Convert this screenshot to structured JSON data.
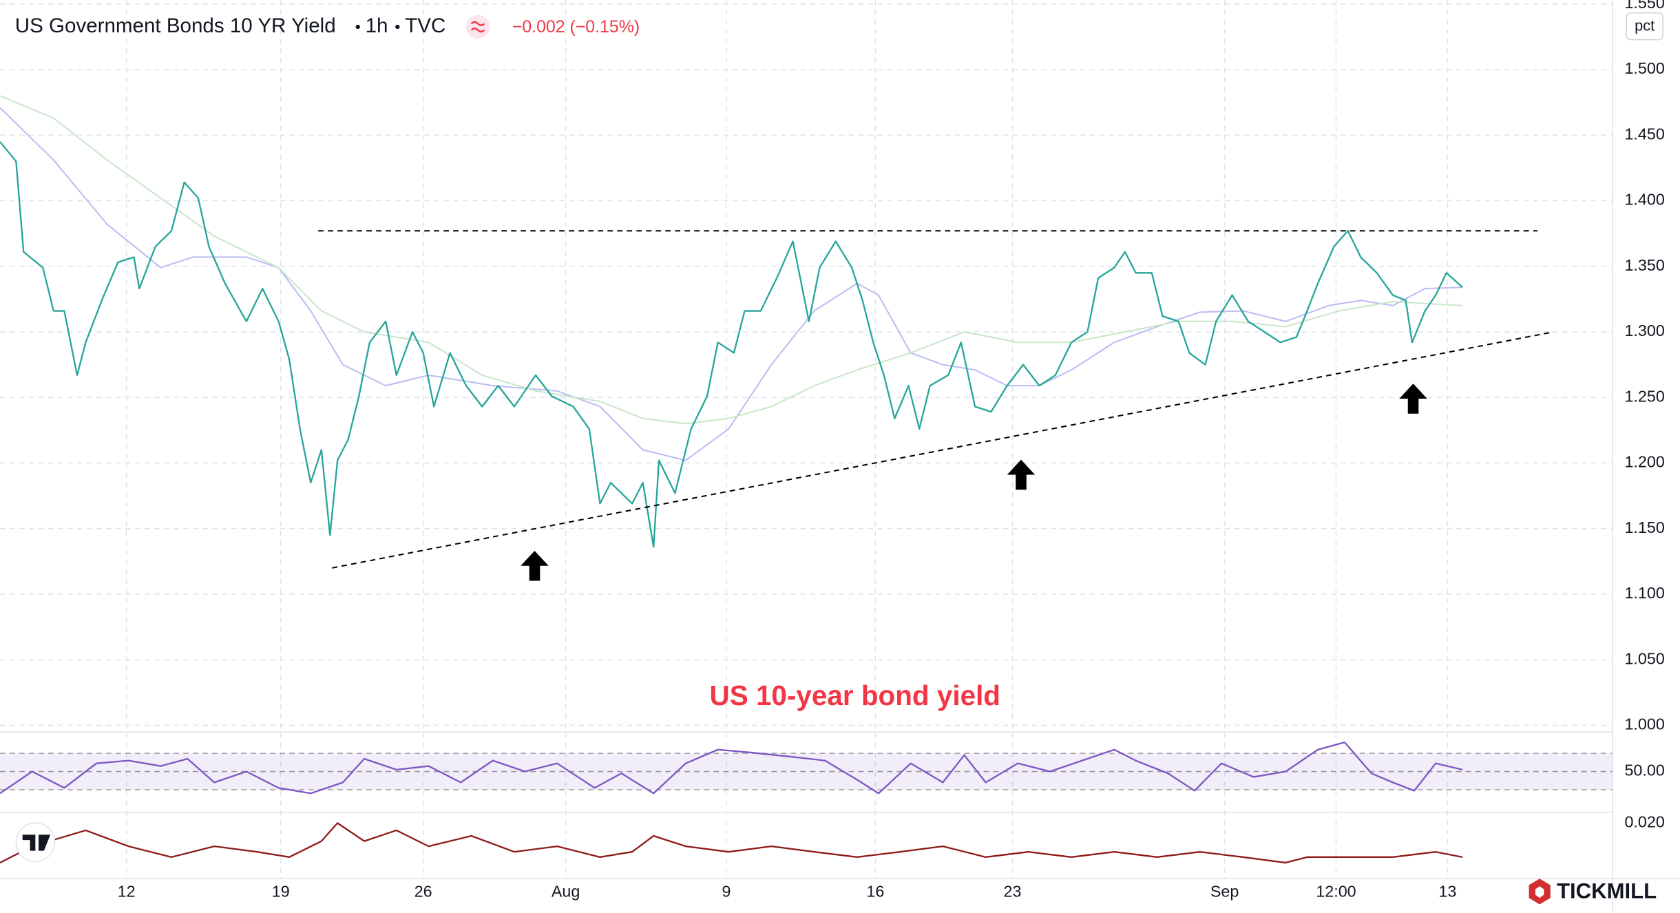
{
  "header": {
    "symbol": "US Government Bonds 10 YR Yield",
    "interval": "1h",
    "source": "TVC",
    "change": "−0.002 (−0.15%)",
    "unit": "pct"
  },
  "brand": "TICKMILL",
  "chart_data": [
    {
      "type": "line",
      "annotation": "US 10-year bond yield",
      "color": "#26a69a",
      "grid": true,
      "xlim": [
        0,
        150.5
      ],
      "ylim": [
        0.995,
        1.553
      ],
      "xticks": [
        {
          "value": 11.8,
          "label": "12"
        },
        {
          "value": 26.2,
          "label": "19"
        },
        {
          "value": 39.5,
          "label": "26"
        },
        {
          "value": 52.8,
          "label": "Aug"
        },
        {
          "value": 67.8,
          "label": "9"
        },
        {
          "value": 81.7,
          "label": "16"
        },
        {
          "value": 94.5,
          "label": "23"
        },
        {
          "value": 114.3,
          "label": "Sep"
        },
        {
          "value": 124.7,
          "label": "12:00"
        },
        {
          "value": 135.1,
          "label": "13"
        }
      ],
      "yticks": [
        {
          "value": 1.0,
          "label": "1.000"
        },
        {
          "value": 1.05,
          "label": "1.050"
        },
        {
          "value": 1.1,
          "label": "1.100"
        },
        {
          "value": 1.15,
          "label": "1.150"
        },
        {
          "value": 1.2,
          "label": "1.200"
        },
        {
          "value": 1.25,
          "label": "1.250"
        },
        {
          "value": 1.3,
          "label": "1.300"
        },
        {
          "value": 1.35,
          "label": "1.350"
        },
        {
          "value": 1.4,
          "label": "1.400"
        },
        {
          "value": 1.45,
          "label": "1.450"
        },
        {
          "value": 1.5,
          "label": "1.500"
        },
        {
          "value": 1.55,
          "label": "1.550"
        }
      ],
      "x": [
        0,
        1.5,
        2.2,
        4,
        5,
        6,
        7.2,
        8,
        9.5,
        11,
        12.5,
        13,
        14.5,
        16,
        17.2,
        18.5,
        19.5,
        21,
        23,
        24.5,
        26,
        27,
        28,
        29,
        30,
        30.8,
        31.5,
        32.5,
        33.5,
        34.5,
        36,
        37,
        38.5,
        39.5,
        40.5,
        42,
        43.5,
        45,
        46.5,
        48,
        50,
        51.5,
        53.5,
        55,
        56,
        57,
        58,
        59,
        60,
        61,
        61.5,
        63,
        64.5,
        66,
        67,
        68.5,
        69.5,
        71,
        72.5,
        74,
        75.5,
        76.5,
        78,
        79.5,
        80.5,
        81.5,
        82.5,
        83.5,
        84.8,
        85.8,
        86.8,
        88.5,
        89.7,
        91,
        92.5,
        94,
        95.5,
        97,
        98.5,
        100,
        101.5,
        102.5,
        104,
        105,
        106,
        107.5,
        108.5,
        110,
        111,
        112.5,
        113.5,
        115,
        116.5,
        118,
        119.5,
        121,
        122,
        123,
        124.5,
        125.8,
        127,
        128.5,
        130,
        131.2,
        131.8,
        133,
        134,
        135,
        136.5
      ],
      "values": [
        1.445,
        1.43,
        1.361,
        1.349,
        1.316,
        1.316,
        1.267,
        1.292,
        1.324,
        1.353,
        1.357,
        1.333,
        1.365,
        1.377,
        1.414,
        1.402,
        1.365,
        1.337,
        1.308,
        1.333,
        1.308,
        1.279,
        1.226,
        1.185,
        1.21,
        1.145,
        1.202,
        1.218,
        1.251,
        1.292,
        1.308,
        1.267,
        1.3,
        1.284,
        1.243,
        1.284,
        1.259,
        1.243,
        1.259,
        1.243,
        1.267,
        1.251,
        1.243,
        1.226,
        1.169,
        1.185,
        1.177,
        1.169,
        1.185,
        1.136,
        1.202,
        1.177,
        1.226,
        1.251,
        1.292,
        1.284,
        1.316,
        1.316,
        1.341,
        1.369,
        1.308,
        1.349,
        1.369,
        1.349,
        1.324,
        1.292,
        1.267,
        1.234,
        1.259,
        1.226,
        1.259,
        1.267,
        1.292,
        1.243,
        1.239,
        1.259,
        1.275,
        1.259,
        1.267,
        1.292,
        1.3,
        1.341,
        1.349,
        1.361,
        1.345,
        1.345,
        1.312,
        1.308,
        1.284,
        1.275,
        1.308,
        1.328,
        1.308,
        1.3,
        1.292,
        1.296,
        1.316,
        1.337,
        1.365,
        1.377,
        1.357,
        1.345,
        1.328,
        1.324,
        1.292,
        1.316,
        1.328,
        1.345,
        1.334
      ],
      "overlays": [
        {
          "color": "#b9bdf2",
          "x": [
            0,
            5,
            10,
            15,
            18,
            23,
            26,
            29,
            32,
            36,
            40,
            46,
            52,
            56,
            60,
            64,
            68,
            72,
            76,
            80,
            82,
            85,
            88,
            91,
            94,
            97,
            100,
            104,
            108,
            112,
            116,
            120,
            124,
            127,
            130,
            133,
            136.5
          ],
          "values": [
            1.471,
            1.431,
            1.382,
            1.349,
            1.357,
            1.357,
            1.349,
            1.316,
            1.275,
            1.259,
            1.267,
            1.259,
            1.255,
            1.243,
            1.21,
            1.202,
            1.226,
            1.275,
            1.316,
            1.337,
            1.328,
            1.284,
            1.275,
            1.271,
            1.259,
            1.259,
            1.271,
            1.292,
            1.304,
            1.315,
            1.316,
            1.308,
            1.32,
            1.324,
            1.32,
            1.333,
            1.334
          ]
        },
        {
          "color": "#c8e6c9",
          "x": [
            0,
            5,
            10,
            15,
            20,
            26,
            30,
            34,
            40,
            45,
            50,
            56,
            60,
            64,
            68,
            72,
            76,
            80,
            85,
            90,
            95,
            100,
            105,
            110,
            115,
            120,
            125,
            130,
            136.5
          ],
          "values": [
            1.48,
            1.463,
            1.431,
            1.402,
            1.373,
            1.349,
            1.316,
            1.3,
            1.292,
            1.267,
            1.255,
            1.247,
            1.234,
            1.23,
            1.234,
            1.243,
            1.259,
            1.271,
            1.284,
            1.3,
            1.292,
            1.292,
            1.3,
            1.308,
            1.308,
            1.304,
            1.316,
            1.323,
            1.32
          ]
        }
      ],
      "trendlines": [
        {
          "x": [
            29.7,
            143.5
          ],
          "values": [
            1.377,
            1.377
          ]
        },
        {
          "x": [
            31,
            145
          ],
          "values": [
            1.12,
            1.3
          ]
        }
      ]
    },
    {
      "type": "line",
      "color": "#7e57c2",
      "ylim": [
        6.5,
        91.2
      ],
      "band": [
        30,
        70
      ],
      "yticks": [
        {
          "value": 50,
          "label": "50.00"
        }
      ],
      "x": [
        0,
        3,
        6,
        9,
        12,
        15,
        17.5,
        20,
        23,
        26,
        29,
        32,
        34,
        37,
        40,
        43,
        46,
        49,
        52,
        55.5,
        58,
        61,
        64,
        67,
        70,
        74,
        77,
        80,
        82,
        85,
        88,
        90,
        92,
        95,
        98,
        101,
        104,
        106,
        109,
        111.5,
        114,
        117,
        120,
        123,
        125.5,
        128,
        130,
        132,
        134,
        136.5
      ],
      "values": [
        26,
        50,
        32,
        59,
        62,
        56,
        64,
        38,
        50,
        32,
        26,
        38,
        64,
        52,
        56,
        38,
        62,
        50,
        59,
        32,
        48,
        26,
        59,
        74,
        71,
        66,
        62,
        41,
        26,
        59,
        38,
        68,
        38,
        59,
        50,
        62,
        74,
        62,
        48,
        29,
        59,
        44,
        50,
        74,
        82,
        48,
        38,
        29,
        59,
        52
      ]
    },
    {
      "type": "line",
      "color": "#8e1b1b",
      "ylim": [
        0.004,
        0.0225
      ],
      "yticks": [
        {
          "value": 0.02,
          "label": "0.020"
        }
      ],
      "x": [
        0,
        3,
        8,
        12,
        16,
        20,
        24,
        27,
        30,
        31.5,
        34,
        37,
        40,
        44,
        48,
        52,
        56,
        59,
        61,
        64,
        68,
        72,
        76,
        80,
        84,
        88,
        92,
        96,
        100,
        104,
        108,
        112,
        116,
        120,
        122,
        126,
        130,
        134,
        136.5
      ],
      "values": [
        0.0086,
        0.0133,
        0.0179,
        0.0133,
        0.0102,
        0.0133,
        0.0117,
        0.0102,
        0.0148,
        0.02,
        0.0148,
        0.0179,
        0.0133,
        0.0163,
        0.0117,
        0.0133,
        0.0102,
        0.0117,
        0.0163,
        0.0133,
        0.0117,
        0.0133,
        0.0117,
        0.0102,
        0.0117,
        0.0133,
        0.0102,
        0.0117,
        0.0102,
        0.0117,
        0.0102,
        0.0117,
        0.0102,
        0.0086,
        0.0102,
        0.0102,
        0.0102,
        0.0117,
        0.0102
      ]
    }
  ]
}
